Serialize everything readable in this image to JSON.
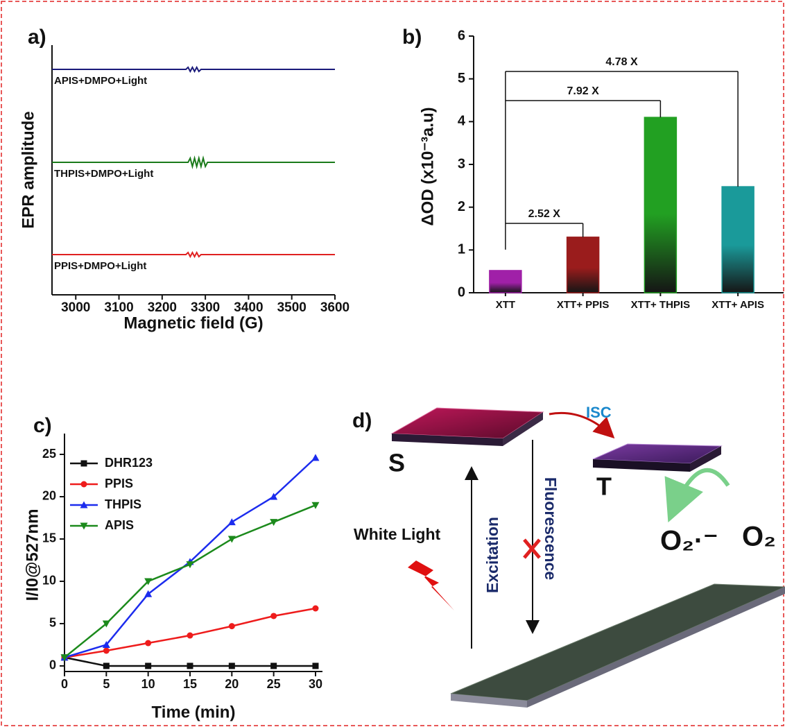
{
  "chart_data": [
    {
      "type": "line",
      "label": "a)",
      "xlabel": "Magnetic field (G)",
      "ylabel": "EPR amplitude",
      "x": [
        2945,
        3255,
        3260,
        3265,
        3270,
        3275,
        3280,
        3285,
        3290,
        3295,
        3300,
        3305,
        3600
      ],
      "xlim": [
        2945,
        3600
      ],
      "xticks": [
        3000,
        3100,
        3200,
        3300,
        3400,
        3500,
        3600
      ],
      "ylim": [
        0,
        3.6
      ],
      "series": [
        {
          "name": "APIS+DMPO+Light",
          "color": "#1a1a7a",
          "values": [
            3.25,
            3.25,
            3.28,
            3.22,
            3.28,
            3.22,
            3.28,
            3.22,
            3.25,
            3.25,
            3.25,
            3.25,
            3.25
          ]
        },
        {
          "name": "THPIS+DMPO+Light",
          "color": "#1a7a1a",
          "values": [
            1.91,
            1.91,
            1.91,
            1.97,
            1.85,
            1.97,
            1.85,
            1.97,
            1.85,
            1.97,
            1.85,
            1.91,
            1.91
          ]
        },
        {
          "name": "PPIS+DMPO+Light",
          "color": "#e02020",
          "values": [
            0.58,
            0.58,
            0.61,
            0.55,
            0.61,
            0.55,
            0.61,
            0.55,
            0.58,
            0.58,
            0.58,
            0.58,
            0.58
          ]
        }
      ]
    },
    {
      "type": "bar",
      "label": "b)",
      "ylabel": "ΔOD (x10⁻³a.u)",
      "categories": [
        "XTT",
        "XTT+ PPIS",
        "XTT+ THPIS",
        "XTT+ APIS"
      ],
      "values": [
        0.52,
        1.3,
        4.1,
        2.48
      ],
      "colors": [
        "#a020a8",
        "#9a1c1c",
        "#22a022",
        "#1a9a9a"
      ],
      "ylim": [
        0,
        6
      ],
      "yticks": [
        0,
        1,
        2,
        3,
        4,
        5,
        6
      ],
      "annotations": [
        "2.52 X",
        "7.92 X",
        "4.78 X"
      ]
    },
    {
      "type": "line",
      "label": "c)",
      "xlabel": "Time (min)",
      "ylabel": "I/I0@527nm",
      "x": [
        0,
        5,
        10,
        15,
        20,
        25,
        30
      ],
      "xlim": [
        0,
        30.83
      ],
      "xticks": [
        0,
        5,
        10,
        15,
        20,
        25,
        30
      ],
      "ylim": [
        -0.66,
        27.46
      ],
      "yticks": [
        0,
        5,
        10,
        15,
        20,
        25
      ],
      "legend": "upper left",
      "series": [
        {
          "name": "DHR123",
          "color": "#111111",
          "marker": "square",
          "values": [
            1,
            0,
            0,
            0,
            0,
            0,
            0
          ]
        },
        {
          "name": "PPIS",
          "color": "#ee1c1c",
          "marker": "circle",
          "values": [
            1,
            1.8,
            2.7,
            3.6,
            4.7,
            5.9,
            6.8
          ]
        },
        {
          "name": "THPIS",
          "color": "#1c2cee",
          "marker": "triangle-up",
          "values": [
            1,
            2.5,
            8.5,
            12.3,
            17,
            20,
            24.6
          ]
        },
        {
          "name": "APIS",
          "color": "#1c8a1c",
          "marker": "triangle-down",
          "values": [
            1,
            5,
            10,
            12,
            15,
            17,
            19
          ]
        }
      ]
    }
  ],
  "diagram": {
    "label": "d)",
    "isc": "ISC",
    "singlet": "S",
    "triplet": "T",
    "light": "White Light",
    "excitation": "Excitation",
    "fluorescence": "Fluorescence",
    "superoxide": "O₂·⁻",
    "oxygen": "O₂"
  }
}
